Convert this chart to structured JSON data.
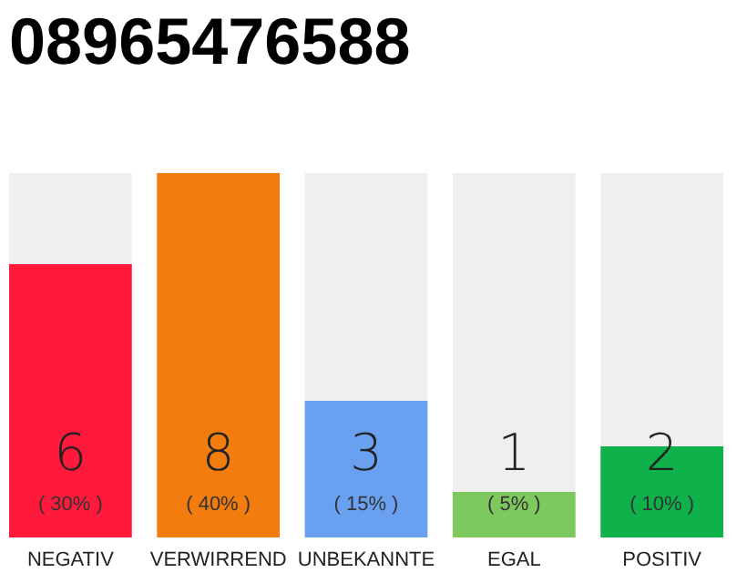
{
  "chart_data": {
    "type": "bar",
    "title": "08965476588",
    "categories": [
      "NEGATIV",
      "VERWIRREND",
      "UNBEKANNTE",
      "EGAL",
      "POSITIV"
    ],
    "values": [
      6,
      8,
      3,
      1,
      2
    ],
    "colors": [
      "#ff1a3c",
      "#f27c0e",
      "#6aa0f0",
      "#7dc95e",
      "#0fb24a"
    ],
    "ylim": [
      0,
      8
    ],
    "tick_labels": "x",
    "data_labels": true,
    "annotations": [
      "( 30% )",
      "( 40% )",
      "( 15% )",
      "( 5% )",
      "( 10% )"
    ]
  }
}
